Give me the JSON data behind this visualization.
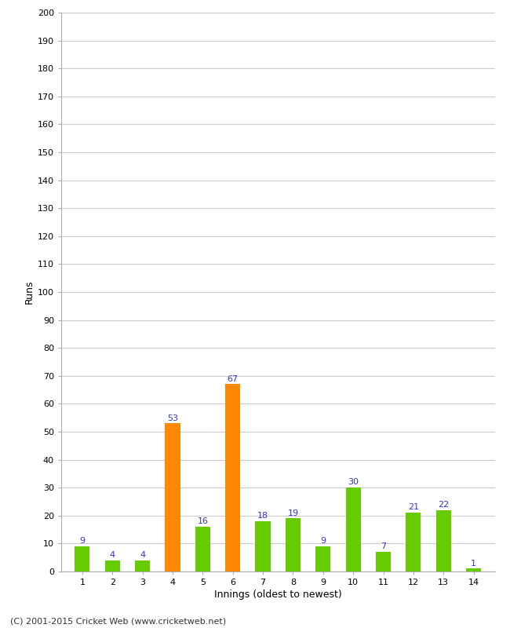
{
  "innings": [
    1,
    2,
    3,
    4,
    5,
    6,
    7,
    8,
    9,
    10,
    11,
    12,
    13,
    14
  ],
  "runs": [
    9,
    4,
    4,
    53,
    16,
    67,
    18,
    19,
    9,
    30,
    7,
    21,
    22,
    1
  ],
  "bar_colors": [
    "#66cc00",
    "#66cc00",
    "#66cc00",
    "#ff8800",
    "#66cc00",
    "#ff8800",
    "#66cc00",
    "#66cc00",
    "#66cc00",
    "#66cc00",
    "#66cc00",
    "#66cc00",
    "#66cc00",
    "#66cc00"
  ],
  "label_colors": [
    "#3333cc",
    "#3333cc",
    "#3333cc",
    "#3333cc",
    "#3333cc",
    "#3333cc",
    "#3333cc",
    "#3333cc",
    "#3333cc",
    "#3333cc",
    "#3333cc",
    "#3333cc",
    "#3333cc",
    "#3333cc"
  ],
  "xlabel": "Innings (oldest to newest)",
  "ylabel": "Runs",
  "ylim": [
    0,
    200
  ],
  "ytick_step": 10,
  "footer": "(C) 2001-2015 Cricket Web (www.cricketweb.net)",
  "background_color": "#ffffff",
  "grid_color": "#cccccc",
  "bar_width": 0.5,
  "label_fontsize": 8,
  "tick_fontsize": 8,
  "axis_label_fontsize": 9,
  "footer_fontsize": 8
}
